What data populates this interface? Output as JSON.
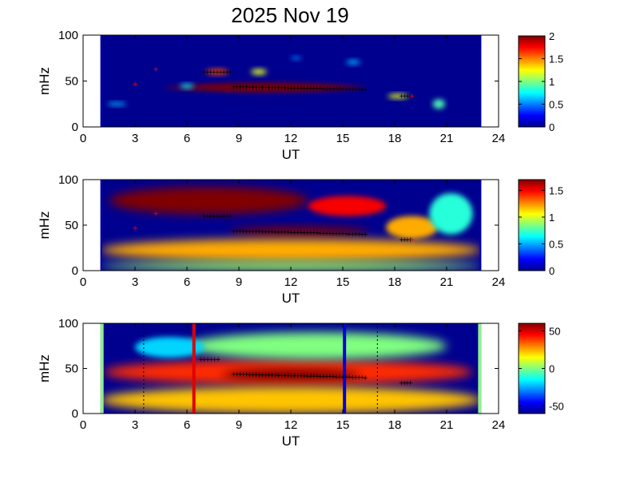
{
  "title": "2025 Nov 19",
  "colors": {
    "background_fill": "#00008f",
    "heat_dark_red": "#800000",
    "marker_black": "#000000",
    "marker_red": "#ff0000",
    "line_red": "#e00000",
    "line_blue": "#0000e0",
    "edge_green": "#90ee90"
  },
  "chart_data": [
    {
      "type": "heatmap",
      "panel": 1,
      "xlabel": "UT",
      "ylabel": "mHz",
      "xlim": [
        0,
        24
      ],
      "ylim": [
        0,
        100
      ],
      "xticks": [
        "0",
        "3",
        "6",
        "9",
        "12",
        "15",
        "18",
        "21",
        "24"
      ],
      "yticks": [
        "0",
        "50",
        "100"
      ],
      "data_range_ut": [
        1,
        23
      ],
      "colorbar": {
        "range": [
          0,
          2
        ],
        "ticks": [
          "0",
          "0.5",
          "1",
          "1.5",
          "2"
        ]
      },
      "background_value": 0,
      "features": [
        {
          "x": [
            4.5,
            16.5
          ],
          "y": [
            38,
            48
          ],
          "value": 2,
          "shape": "lens"
        },
        {
          "x": [
            7.1,
            8.4
          ],
          "y": [
            57,
            63
          ],
          "value": 1.6
        },
        {
          "x": [
            9.7,
            10.6
          ],
          "y": [
            57,
            63
          ],
          "value": 1.2
        },
        {
          "x": [
            17.6,
            18.8
          ],
          "y": [
            31,
            36
          ],
          "value": 1.2
        },
        {
          "x": [
            20.2,
            20.9
          ],
          "y": [
            20,
            30
          ],
          "value": 0.9
        },
        {
          "x": [
            1.4,
            2.5
          ],
          "y": [
            23,
            27
          ],
          "value": 0.6
        },
        {
          "x": [
            15.2,
            16.0
          ],
          "y": [
            68,
            73
          ],
          "value": 0.6
        },
        {
          "x": [
            12.0,
            12.6
          ],
          "y": [
            73,
            77
          ],
          "value": 0.5
        },
        {
          "x": [
            5.6,
            6.4
          ],
          "y": [
            42,
            47
          ],
          "value": 0.7
        }
      ],
      "markers_black": [
        {
          "x": [
            7.0,
            8.5
          ],
          "y": 60
        },
        {
          "x": [
            8.7,
            16.3
          ],
          "y": [
            44,
            41
          ]
        },
        {
          "x": [
            18.4,
            18.9
          ],
          "y": 34
        }
      ],
      "markers_red": [
        [
          3.0,
          47
        ],
        [
          4.2,
          63
        ],
        [
          19.0,
          34
        ]
      ]
    },
    {
      "type": "heatmap",
      "panel": 2,
      "xlabel": "UT",
      "ylabel": "mHz",
      "xlim": [
        0,
        24
      ],
      "ylim": [
        0,
        100
      ],
      "xticks": [
        "0",
        "3",
        "6",
        "9",
        "12",
        "15",
        "18",
        "21",
        "24"
      ],
      "yticks": [
        "0",
        "50",
        "100"
      ],
      "data_range_ut": [
        1,
        23
      ],
      "colorbar": {
        "range": [
          0,
          1.7
        ],
        "ticks": [
          "0",
          "0.5",
          "1",
          "1.5"
        ]
      },
      "background_value": 0,
      "features": [
        {
          "x": [
            1.5,
            13.0
          ],
          "y": [
            62,
            92
          ],
          "value": 1.7
        },
        {
          "x": [
            8.5,
            16.5
          ],
          "y": [
            38,
            48
          ],
          "value": 1.7
        },
        {
          "x": [
            13.0,
            17.5
          ],
          "y": [
            60,
            82
          ],
          "value": 1.5
        },
        {
          "x": [
            17.5,
            20.5
          ],
          "y": [
            35,
            60
          ],
          "value": 1.2
        },
        {
          "x": [
            20.0,
            22.5
          ],
          "y": [
            40,
            85
          ],
          "value": 0.7
        },
        {
          "x": [
            1.0,
            23.0
          ],
          "y": [
            10,
            35
          ],
          "value": 1.2
        },
        {
          "x": [
            1.0,
            23.0
          ],
          "y": [
            0,
            10
          ],
          "value": 0.9
        }
      ],
      "markers_black": [
        {
          "x": [
            7.0,
            8.5
          ],
          "y": 60
        },
        {
          "x": [
            8.7,
            16.3
          ],
          "y": [
            44,
            40
          ]
        },
        {
          "x": [
            18.4,
            18.9
          ],
          "y": 34
        }
      ],
      "markers_red": [
        [
          3.0,
          47
        ],
        [
          4.2,
          63
        ],
        [
          19.0,
          34
        ]
      ]
    },
    {
      "type": "heatmap",
      "panel": 3,
      "xlabel": "UT",
      "ylabel": "mHz",
      "xlim": [
        0,
        24
      ],
      "ylim": [
        0,
        100
      ],
      "xticks": [
        "0",
        "3",
        "6",
        "9",
        "12",
        "15",
        "18",
        "21",
        "24"
      ],
      "yticks": [
        "0",
        "50",
        "100"
      ],
      "data_range_ut": [
        1,
        23
      ],
      "colorbar": {
        "range": [
          -60,
          60
        ],
        "ticks": [
          "-50",
          "0",
          "50"
        ]
      },
      "background_value": -60,
      "features": [
        {
          "x": [
            1.2,
            22.5
          ],
          "y": [
            32,
            60
          ],
          "value": 40
        },
        {
          "x": [
            8.0,
            16.0
          ],
          "y": [
            35,
            50
          ],
          "value": 60
        },
        {
          "x": [
            1.0,
            23.0
          ],
          "y": [
            0,
            30
          ],
          "value": 22
        },
        {
          "x": [
            6.0,
            21.0
          ],
          "y": [
            60,
            90
          ],
          "value": 0
        },
        {
          "x": [
            3.0,
            7.0
          ],
          "y": [
            62,
            85
          ],
          "value": -20
        }
      ],
      "markers_black": [
        {
          "x": [
            6.8,
            7.8
          ],
          "y": 60
        },
        {
          "x": [
            8.7,
            16.3
          ],
          "y": [
            44,
            40
          ]
        },
        {
          "x": [
            18.4,
            18.9
          ],
          "y": 34
        }
      ],
      "markers_red": [],
      "vertical_lines": [
        {
          "ut": 6.4,
          "color": "red"
        },
        {
          "ut": 15.1,
          "color": "blue"
        }
      ],
      "dotted_lines_ut": [
        3.5,
        17.0
      ]
    }
  ]
}
